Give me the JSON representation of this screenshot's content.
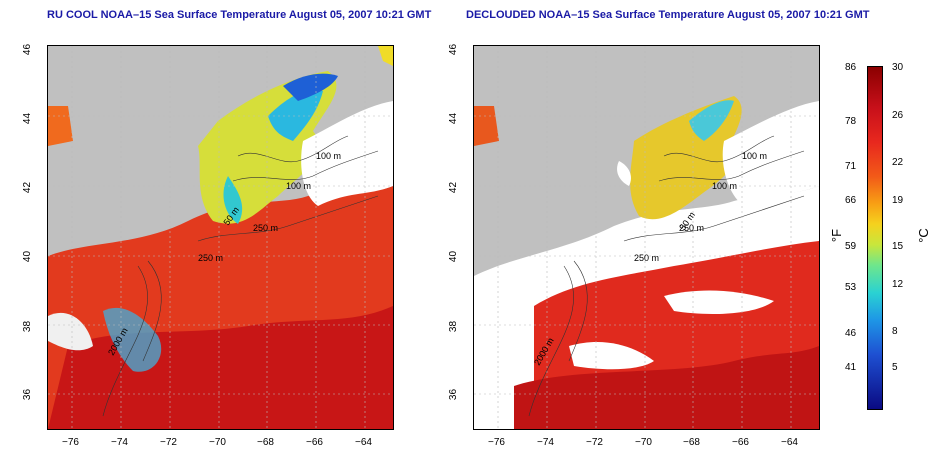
{
  "maps": [
    {
      "title": "RU COOL NOAA–15 Sea Surface Temperature August 05, 2007 10:21 GMT",
      "contours": [
        "100 m",
        "100 m",
        "50 m",
        "250 m",
        "250 m",
        "2000 m"
      ],
      "yticks": [
        "46",
        "44",
        "42",
        "40",
        "38",
        "36"
      ],
      "xticks": [
        "−76",
        "−74",
        "−72",
        "−70",
        "−68",
        "−66",
        "−64"
      ]
    },
    {
      "title": "DECLOUDED NOAA–15 Sea Surface Temperature August 05, 2007 10:21 GMT",
      "contours": [
        "100 m",
        "100 m",
        "50 m",
        "250 m",
        "250 m",
        "2000 m"
      ],
      "yticks": [
        "46",
        "44",
        "42",
        "40",
        "38",
        "36"
      ],
      "xticks": [
        "−76",
        "−74",
        "−72",
        "−70",
        "−68",
        "−66",
        "−64"
      ]
    }
  ],
  "colorbar": {
    "fahrenheit_ticks": [
      "86",
      "78",
      "71",
      "66",
      "59",
      "53",
      "46",
      "41"
    ],
    "celsius_ticks": [
      "30",
      "26",
      "22",
      "19",
      "15",
      "12",
      "8",
      "5"
    ],
    "fahrenheit_label": "°F",
    "celsius_label": "°C"
  }
}
